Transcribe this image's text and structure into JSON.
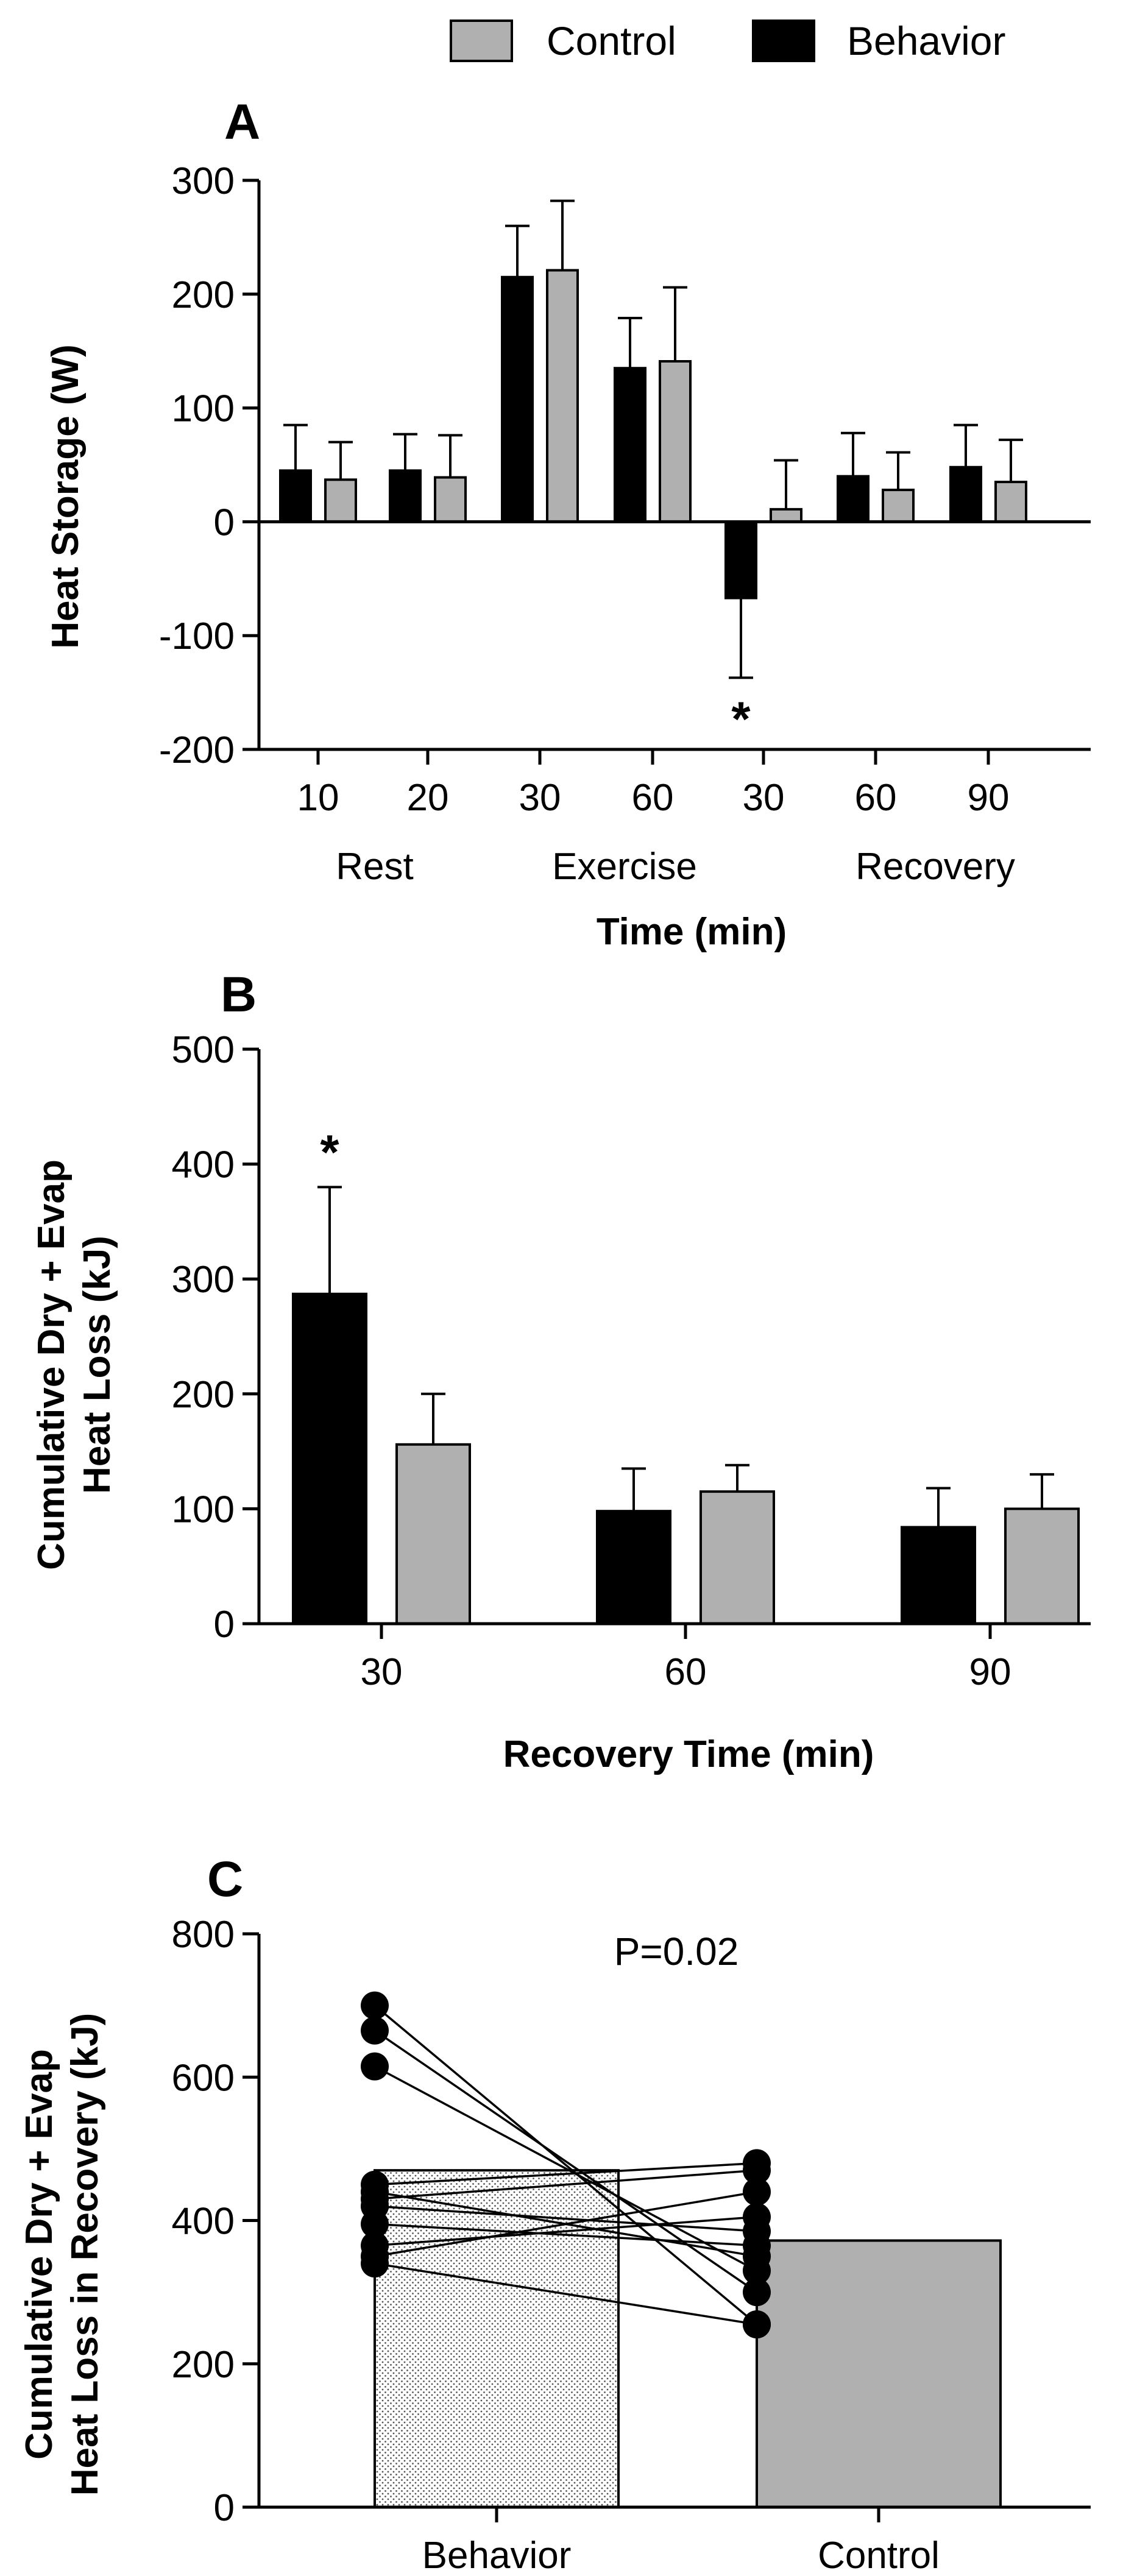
{
  "legend": {
    "items": [
      {
        "name": "Control",
        "color": "#b0b0b0"
      },
      {
        "name": "Behavior",
        "color": "#000000"
      }
    ]
  },
  "chart_data": [
    {
      "panel": "A",
      "type": "bar",
      "ylabel": "Heat Storage (W)",
      "xlabel": "Time (min)",
      "ylim": [
        -200,
        300
      ],
      "yticks": [
        -200,
        -100,
        0,
        100,
        200,
        300
      ],
      "categories": [
        "10",
        "20",
        "30",
        "60",
        "30",
        "60",
        "90"
      ],
      "groups": [
        "Rest",
        "Exercise",
        "Recovery"
      ],
      "series": [
        {
          "name": "Behavior",
          "color": "#000000",
          "values": [
            45,
            45,
            215,
            135,
            -67,
            40,
            48
          ],
          "errors": [
            40,
            32,
            45,
            44,
            70,
            38,
            37
          ]
        },
        {
          "name": "Control",
          "color": "#b0b0b0",
          "values": [
            37,
            39,
            221,
            141,
            11,
            28,
            35
          ],
          "errors": [
            33,
            37,
            61,
            65,
            43,
            33,
            37
          ]
        }
      ],
      "annotations": [
        {
          "text": "*",
          "category_index": 4
        }
      ]
    },
    {
      "panel": "B",
      "type": "bar",
      "ylabel_lines": [
        "Cumulative Dry + Evap",
        "Heat Loss (kJ)"
      ],
      "xlabel": "Recovery Time (min)",
      "ylim": [
        0,
        500
      ],
      "yticks": [
        0,
        100,
        200,
        300,
        400,
        500
      ],
      "categories": [
        "30",
        "60",
        "90"
      ],
      "series": [
        {
          "name": "Behavior",
          "color": "#000000",
          "values": [
            287,
            98,
            84
          ],
          "errors": [
            93,
            37,
            34
          ]
        },
        {
          "name": "Control",
          "color": "#b0b0b0",
          "values": [
            156,
            115,
            100
          ],
          "errors": [
            44,
            23,
            30
          ]
        }
      ],
      "annotations": [
        {
          "text": "*",
          "category_index": 0
        }
      ]
    },
    {
      "panel": "C",
      "type": "bar",
      "ylabel_lines": [
        "Cumulative Dry + Evap",
        "Heat Loss in Recovery (kJ)"
      ],
      "ylim": [
        0,
        800
      ],
      "yticks": [
        0,
        200,
        400,
        600,
        800
      ],
      "categories": [
        "Behavior",
        "Control"
      ],
      "values": [
        470,
        372
      ],
      "annotation": "P=0.02",
      "paired_points": [
        [
          700,
          255
        ],
        [
          665,
          300
        ],
        [
          615,
          330
        ],
        [
          450,
          480
        ],
        [
          440,
          350
        ],
        [
          430,
          470
        ],
        [
          420,
          385
        ],
        [
          395,
          365
        ],
        [
          365,
          405
        ],
        [
          350,
          440
        ],
        [
          340,
          255
        ]
      ]
    }
  ]
}
